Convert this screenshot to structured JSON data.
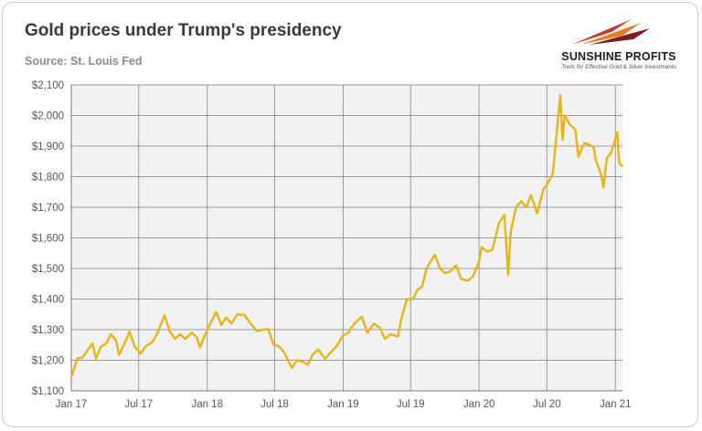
{
  "title": "Gold prices under Trump's presidency",
  "subtitle": "Source: St. Louis Fed",
  "logo": {
    "name": "SUNSHINE PROFITS",
    "tagline": "Tools for Effective Gold & Silver Investments",
    "colors": [
      "#c0392b",
      "#e67e22",
      "#7f1d1d"
    ]
  },
  "chart_data": {
    "type": "line",
    "title": "Gold prices under Trump's presidency",
    "xlabel": "",
    "ylabel": "",
    "ylim": [
      1100,
      2100
    ],
    "xlim": [
      "2017-01-01",
      "2021-01-20"
    ],
    "grid": true,
    "legend": "none",
    "line_color": "#e8b516",
    "plot_background": "#f2f2f2",
    "y_ticks": [
      1100,
      1200,
      1300,
      1400,
      1500,
      1600,
      1700,
      1800,
      1900,
      2000,
      2100
    ],
    "y_tick_labels": [
      "$1,100",
      "$1,200",
      "$1,300",
      "$1,400",
      "$1,500",
      "$1,600",
      "$1,700",
      "$1,800",
      "$1,900",
      "$2,000",
      "$2,100"
    ],
    "x_ticks": [
      "2017-01-01",
      "2017-07-01",
      "2018-01-01",
      "2018-07-01",
      "2019-01-01",
      "2019-07-01",
      "2020-01-01",
      "2020-07-01",
      "2021-01-01"
    ],
    "x_tick_labels": [
      "Jan 17",
      "Jul 17",
      "Jan 18",
      "Jul 18",
      "Jan 19",
      "Jul 19",
      "Jan 20",
      "Jul 20",
      "Jan 21"
    ],
    "series": [
      {
        "values": [
          [
            "2017-01-03",
            1151
          ],
          [
            "2017-01-17",
            1205
          ],
          [
            "2017-02-01",
            1210
          ],
          [
            "2017-02-15",
            1235
          ],
          [
            "2017-02-27",
            1255
          ],
          [
            "2017-03-08",
            1205
          ],
          [
            "2017-03-22",
            1245
          ],
          [
            "2017-04-05",
            1255
          ],
          [
            "2017-04-17",
            1285
          ],
          [
            "2017-05-01",
            1265
          ],
          [
            "2017-05-09",
            1218
          ],
          [
            "2017-05-24",
            1255
          ],
          [
            "2017-06-06",
            1293
          ],
          [
            "2017-06-20",
            1245
          ],
          [
            "2017-07-06",
            1222
          ],
          [
            "2017-07-20",
            1245
          ],
          [
            "2017-08-07",
            1260
          ],
          [
            "2017-08-21",
            1290
          ],
          [
            "2017-09-08",
            1347
          ],
          [
            "2017-09-22",
            1295
          ],
          [
            "2017-10-06",
            1270
          ],
          [
            "2017-10-20",
            1285
          ],
          [
            "2017-11-03",
            1270
          ],
          [
            "2017-11-20",
            1290
          ],
          [
            "2017-12-04",
            1275
          ],
          [
            "2017-12-12",
            1242
          ],
          [
            "2017-12-27",
            1285
          ],
          [
            "2018-01-10",
            1322
          ],
          [
            "2018-01-25",
            1358
          ],
          [
            "2018-02-08",
            1315
          ],
          [
            "2018-02-20",
            1340
          ],
          [
            "2018-03-07",
            1320
          ],
          [
            "2018-03-23",
            1350
          ],
          [
            "2018-04-11",
            1348
          ],
          [
            "2018-04-24",
            1325
          ],
          [
            "2018-05-15",
            1295
          ],
          [
            "2018-06-01",
            1300
          ],
          [
            "2018-06-14",
            1302
          ],
          [
            "2018-06-28",
            1252
          ],
          [
            "2018-07-13",
            1245
          ],
          [
            "2018-07-27",
            1225
          ],
          [
            "2018-08-16",
            1175
          ],
          [
            "2018-08-31",
            1200
          ],
          [
            "2018-09-14",
            1195
          ],
          [
            "2018-09-28",
            1185
          ],
          [
            "2018-10-12",
            1220
          ],
          [
            "2018-10-26",
            1235
          ],
          [
            "2018-11-13",
            1205
          ],
          [
            "2018-11-28",
            1225
          ],
          [
            "2018-12-14",
            1245
          ],
          [
            "2018-12-31",
            1280
          ],
          [
            "2019-01-15",
            1290
          ],
          [
            "2019-01-31",
            1320
          ],
          [
            "2019-02-20",
            1342
          ],
          [
            "2019-03-07",
            1290
          ],
          [
            "2019-03-25",
            1320
          ],
          [
            "2019-04-10",
            1305
          ],
          [
            "2019-04-23",
            1270
          ],
          [
            "2019-05-09",
            1285
          ],
          [
            "2019-05-28",
            1278
          ],
          [
            "2019-06-06",
            1335
          ],
          [
            "2019-06-21",
            1400
          ],
          [
            "2019-07-08",
            1400
          ],
          [
            "2019-07-19",
            1430
          ],
          [
            "2019-08-01",
            1440
          ],
          [
            "2019-08-13",
            1500
          ],
          [
            "2019-09-04",
            1545
          ],
          [
            "2019-09-18",
            1500
          ],
          [
            "2019-10-01",
            1485
          ],
          [
            "2019-10-15",
            1490
          ],
          [
            "2019-10-31",
            1510
          ],
          [
            "2019-11-14",
            1465
          ],
          [
            "2019-12-02",
            1460
          ],
          [
            "2019-12-16",
            1475
          ],
          [
            "2019-12-31",
            1520
          ],
          [
            "2020-01-08",
            1570
          ],
          [
            "2020-01-22",
            1555
          ],
          [
            "2020-02-05",
            1560
          ],
          [
            "2020-02-24",
            1650
          ],
          [
            "2020-03-09",
            1675
          ],
          [
            "2020-03-19",
            1480
          ],
          [
            "2020-03-26",
            1620
          ],
          [
            "2020-04-09",
            1700
          ],
          [
            "2020-04-23",
            1720
          ],
          [
            "2020-05-07",
            1700
          ],
          [
            "2020-05-19",
            1740
          ],
          [
            "2020-06-05",
            1680
          ],
          [
            "2020-06-22",
            1760
          ],
          [
            "2020-07-02",
            1775
          ],
          [
            "2020-07-17",
            1810
          ],
          [
            "2020-07-27",
            1940
          ],
          [
            "2020-08-06",
            2067
          ],
          [
            "2020-08-12",
            1920
          ],
          [
            "2020-08-18",
            2000
          ],
          [
            "2020-09-01",
            1970
          ],
          [
            "2020-09-15",
            1955
          ],
          [
            "2020-09-24",
            1865
          ],
          [
            "2020-10-09",
            1910
          ],
          [
            "2020-10-23",
            1905
          ],
          [
            "2020-11-04",
            1895
          ],
          [
            "2020-11-09",
            1855
          ],
          [
            "2020-11-24",
            1805
          ],
          [
            "2020-11-30",
            1765
          ],
          [
            "2020-12-09",
            1860
          ],
          [
            "2020-12-21",
            1880
          ],
          [
            "2021-01-06",
            1945
          ],
          [
            "2021-01-11",
            1845
          ],
          [
            "2021-01-19",
            1835
          ]
        ]
      }
    ]
  }
}
